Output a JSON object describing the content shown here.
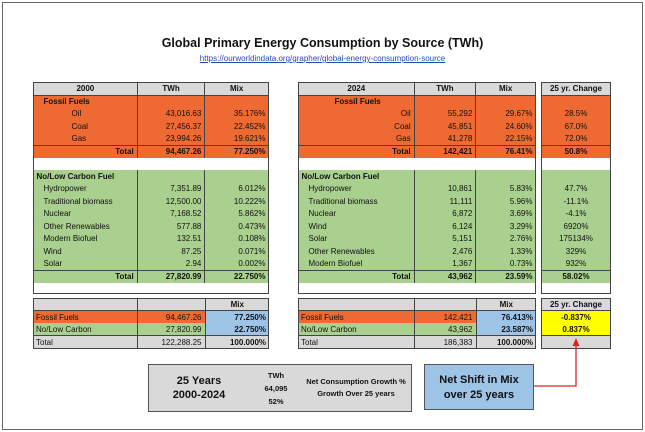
{
  "title": "Global Primary Energy Consumption by Source (TWh)",
  "link": "https://ourworldindata.org/grapher/global-energy-consumption-source",
  "left": {
    "header": {
      "year": "2000",
      "twh": "TWh",
      "mix": "Mix"
    },
    "fossil_title": "Fossil Fuels",
    "fossil_rows": [
      {
        "name": "Oil",
        "twh": "43,016.63",
        "mix": "35.176%"
      },
      {
        "name": "Coal",
        "twh": "27,456.37",
        "mix": "22.452%"
      },
      {
        "name": "Gas",
        "twh": "23,994.26",
        "mix": "19.621%"
      }
    ],
    "fossil_total": {
      "label": "Total",
      "twh": "94,467.26",
      "mix": "77.250%"
    },
    "lc_title": "No/Low Carbon Fuel",
    "lc_rows": [
      {
        "name": "Hydropower",
        "twh": "7,351.89",
        "mix": "6.012%"
      },
      {
        "name": "Traditional biomass",
        "twh": "12,500.00",
        "mix": "10.222%"
      },
      {
        "name": "Nuclear",
        "twh": "7,168.52",
        "mix": "5.862%"
      },
      {
        "name": "Other Renewables",
        "twh": "577.88",
        "mix": "0.473%"
      },
      {
        "name": "Modern Biofuel",
        "twh": "132.51",
        "mix": "0.108%"
      },
      {
        "name": "Wind",
        "twh": "87.25",
        "mix": "0.071%"
      },
      {
        "name": "Solar",
        "twh": "2.94",
        "mix": "0.002%"
      }
    ],
    "lc_total": {
      "label": "Total",
      "twh": "27,820.99",
      "mix": "22.750%"
    },
    "summary": {
      "mix_header": "Mix",
      "fossil": {
        "label": "Fossil Fuels",
        "twh": "94,467.26",
        "mix": "77.250%"
      },
      "lowcarbon": {
        "label": "No/Low Carbon",
        "twh": "27,820.99",
        "mix": "22.750%"
      },
      "total": {
        "label": "Total",
        "twh": "122,288.25",
        "mix": "100.000%"
      }
    }
  },
  "right": {
    "header": {
      "year": "2024",
      "twh": "TWh",
      "mix": "Mix",
      "change": "25 yr. Change"
    },
    "fossil_title": "Fossil Fuels",
    "fossil_rows": [
      {
        "name": "Oil",
        "twh": "55,292",
        "mix": "29.67%",
        "change": "28.5%"
      },
      {
        "name": "Coal",
        "twh": "45,851",
        "mix": "24.60%",
        "change": "67.0%"
      },
      {
        "name": "Gas",
        "twh": "41,278",
        "mix": "22.15%",
        "change": "72.0%"
      }
    ],
    "fossil_total": {
      "label": "Total",
      "twh": "142,421",
      "mix": "76.41%",
      "change": "50.8%"
    },
    "lc_title": "No/Low Carbon Fuel",
    "lc_rows": [
      {
        "name": "Hydropower",
        "twh": "10,861",
        "mix": "5.83%",
        "change": "47.7%"
      },
      {
        "name": "Traditional biomass",
        "twh": "11,111",
        "mix": "5.96%",
        "change": "-11.1%"
      },
      {
        "name": "Nuclear",
        "twh": "6,872",
        "mix": "3.69%",
        "change": "-4.1%"
      },
      {
        "name": "Wind",
        "twh": "6,124",
        "mix": "3.29%",
        "change": "6920%"
      },
      {
        "name": "Solar",
        "twh": "5,151",
        "mix": "2.76%",
        "change": "175134%"
      },
      {
        "name": "Other Renewables",
        "twh": "2,476",
        "mix": "1.33%",
        "change": "329%"
      },
      {
        "name": "Modern Biofuel",
        "twh": "1,367",
        "mix": "0.73%",
        "change": "932%"
      }
    ],
    "lc_total": {
      "label": "Total",
      "twh": "43,962",
      "mix": "23.59%",
      "change": "58.02%"
    },
    "summary": {
      "mix_header": "Mix",
      "change_header": "25 yr. Change",
      "fossil": {
        "label": "Fossil Fuels",
        "twh": "142,421",
        "mix": "76.413%",
        "change": "-0.837%"
      },
      "lowcarbon": {
        "label": "No/Low Carbon",
        "twh": "43,962",
        "mix": "23.587%",
        "change": "0.837%"
      },
      "total": {
        "label": "Total",
        "twh": "186,383",
        "mix": "100.000%"
      }
    }
  },
  "growth_box": {
    "years": "25 Years",
    "range": "2000-2024",
    "twh_label": "TWh",
    "twh_value": "64,095",
    "percent": "52%",
    "desc": "Net Consumption Growth % Growth Over 25 years"
  },
  "shift_box": {
    "line1": "Net Shift in Mix",
    "line2": "over 25 years"
  },
  "colors": {
    "fossil": "#ee6a32",
    "lowcarbon": "#a9d08e",
    "header": "#d9d9d9",
    "blue": "#9dc3e6",
    "yellow": "#ffff00",
    "arrow": "#d9262b"
  }
}
